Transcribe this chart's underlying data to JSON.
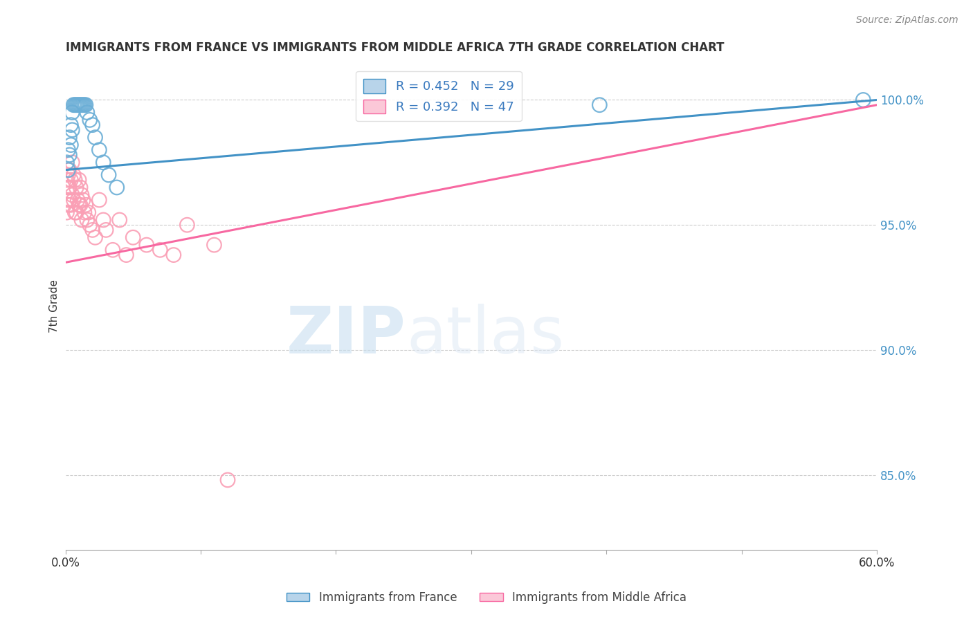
{
  "title": "IMMIGRANTS FROM FRANCE VS IMMIGRANTS FROM MIDDLE AFRICA 7TH GRADE CORRELATION CHART",
  "source": "Source: ZipAtlas.com",
  "ylabel": "7th Grade",
  "ytick_labels": [
    "100.0%",
    "95.0%",
    "90.0%",
    "85.0%"
  ],
  "ytick_values": [
    1.0,
    0.95,
    0.9,
    0.85
  ],
  "xmin": 0.0,
  "xmax": 0.6,
  "ymin": 0.82,
  "ymax": 1.015,
  "blue_R": 0.452,
  "blue_N": 29,
  "pink_R": 0.392,
  "pink_N": 47,
  "blue_color": "#6baed6",
  "pink_color": "#fa9fb5",
  "blue_line_color": "#4292c6",
  "pink_line_color": "#f768a1",
  "legend_label_blue": "Immigrants from France",
  "legend_label_pink": "Immigrants from Middle Africa",
  "watermark_zip": "ZIP",
  "watermark_atlas": "atlas",
  "blue_trend_x0": 0.0,
  "blue_trend_y0": 0.972,
  "blue_trend_x1": 0.6,
  "blue_trend_y1": 1.0,
  "pink_trend_x0": 0.0,
  "pink_trend_y0": 0.935,
  "pink_trend_x1": 0.6,
  "pink_trend_y1": 0.998,
  "blue_scatter_x": [
    0.001,
    0.002,
    0.002,
    0.003,
    0.003,
    0.004,
    0.004,
    0.005,
    0.005,
    0.006,
    0.007,
    0.008,
    0.009,
    0.01,
    0.011,
    0.012,
    0.013,
    0.014,
    0.015,
    0.016,
    0.018,
    0.02,
    0.022,
    0.025,
    0.028,
    0.032,
    0.038,
    0.395,
    0.59
  ],
  "blue_scatter_y": [
    0.975,
    0.972,
    0.98,
    0.978,
    0.985,
    0.99,
    0.982,
    0.988,
    0.995,
    0.998,
    0.998,
    0.998,
    0.998,
    0.998,
    0.998,
    0.998,
    0.998,
    0.998,
    0.998,
    0.995,
    0.992,
    0.99,
    0.985,
    0.98,
    0.975,
    0.97,
    0.965,
    0.998,
    1.0
  ],
  "pink_scatter_x": [
    0.001,
    0.001,
    0.001,
    0.002,
    0.002,
    0.002,
    0.003,
    0.003,
    0.003,
    0.004,
    0.004,
    0.005,
    0.005,
    0.006,
    0.006,
    0.007,
    0.007,
    0.008,
    0.008,
    0.009,
    0.01,
    0.01,
    0.011,
    0.011,
    0.012,
    0.012,
    0.013,
    0.014,
    0.015,
    0.016,
    0.017,
    0.018,
    0.02,
    0.022,
    0.025,
    0.028,
    0.03,
    0.035,
    0.04,
    0.045,
    0.05,
    0.06,
    0.07,
    0.08,
    0.09,
    0.11,
    0.12
  ],
  "pink_scatter_y": [
    0.968,
    0.96,
    0.955,
    0.97,
    0.965,
    0.958,
    0.972,
    0.965,
    0.96,
    0.968,
    0.958,
    0.975,
    0.962,
    0.97,
    0.96,
    0.968,
    0.955,
    0.965,
    0.955,
    0.96,
    0.968,
    0.958,
    0.965,
    0.958,
    0.962,
    0.952,
    0.96,
    0.955,
    0.958,
    0.952,
    0.955,
    0.95,
    0.948,
    0.945,
    0.96,
    0.952,
    0.948,
    0.94,
    0.952,
    0.938,
    0.945,
    0.942,
    0.94,
    0.938,
    0.95,
    0.942,
    0.848
  ]
}
